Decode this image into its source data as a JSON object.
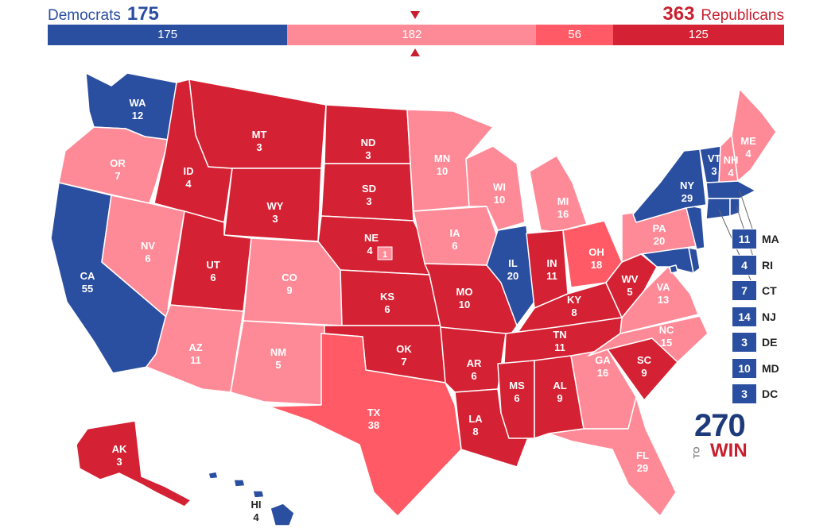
{
  "header": {
    "dem_label": "Democrats",
    "dem_total": "175",
    "rep_total": "363",
    "rep_label": "Republicans"
  },
  "bar": [
    {
      "value": 175,
      "label": "175",
      "color": "#2a4ea0"
    },
    {
      "value": 182,
      "label": "182",
      "color": "#ff8a97"
    },
    {
      "value": 56,
      "label": "56",
      "color": "#ff5a65"
    },
    {
      "value": 125,
      "label": "125",
      "color": "#d42234"
    }
  ],
  "colors": {
    "safe_dem": "#2a4ea0",
    "lean_rep": "#ff8a97",
    "likely_rep": "#ff5a65",
    "safe_rep": "#d42234"
  },
  "states": [
    {
      "abbr": "WA",
      "ev": "12",
      "rating": "safe_dem"
    },
    {
      "abbr": "OR",
      "ev": "7",
      "rating": "lean_rep"
    },
    {
      "abbr": "CA",
      "ev": "55",
      "rating": "safe_dem"
    },
    {
      "abbr": "ID",
      "ev": "4",
      "rating": "safe_rep"
    },
    {
      "abbr": "NV",
      "ev": "6",
      "rating": "lean_rep"
    },
    {
      "abbr": "MT",
      "ev": "3",
      "rating": "safe_rep"
    },
    {
      "abbr": "WY",
      "ev": "3",
      "rating": "safe_rep"
    },
    {
      "abbr": "UT",
      "ev": "6",
      "rating": "safe_rep"
    },
    {
      "abbr": "CO",
      "ev": "9",
      "rating": "lean_rep"
    },
    {
      "abbr": "AZ",
      "ev": "11",
      "rating": "lean_rep"
    },
    {
      "abbr": "NM",
      "ev": "5",
      "rating": "lean_rep"
    },
    {
      "abbr": "ND",
      "ev": "3",
      "rating": "safe_rep"
    },
    {
      "abbr": "SD",
      "ev": "3",
      "rating": "safe_rep"
    },
    {
      "abbr": "NE",
      "ev": "4",
      "rating": "safe_rep"
    },
    {
      "abbr": "KS",
      "ev": "6",
      "rating": "safe_rep"
    },
    {
      "abbr": "OK",
      "ev": "7",
      "rating": "safe_rep"
    },
    {
      "abbr": "TX",
      "ev": "38",
      "rating": "likely_rep"
    },
    {
      "abbr": "MN",
      "ev": "10",
      "rating": "lean_rep"
    },
    {
      "abbr": "IA",
      "ev": "6",
      "rating": "lean_rep"
    },
    {
      "abbr": "MO",
      "ev": "10",
      "rating": "safe_rep"
    },
    {
      "abbr": "AR",
      "ev": "6",
      "rating": "safe_rep"
    },
    {
      "abbr": "LA",
      "ev": "8",
      "rating": "safe_rep"
    },
    {
      "abbr": "WI",
      "ev": "10",
      "rating": "lean_rep"
    },
    {
      "abbr": "IL",
      "ev": "20",
      "rating": "safe_dem"
    },
    {
      "abbr": "MI",
      "ev": "16",
      "rating": "lean_rep"
    },
    {
      "abbr": "IN",
      "ev": "11",
      "rating": "safe_rep"
    },
    {
      "abbr": "OH",
      "ev": "18",
      "rating": "likely_rep"
    },
    {
      "abbr": "KY",
      "ev": "8",
      "rating": "safe_rep"
    },
    {
      "abbr": "TN",
      "ev": "11",
      "rating": "safe_rep"
    },
    {
      "abbr": "MS",
      "ev": "6",
      "rating": "safe_rep"
    },
    {
      "abbr": "AL",
      "ev": "9",
      "rating": "safe_rep"
    },
    {
      "abbr": "GA",
      "ev": "16",
      "rating": "lean_rep"
    },
    {
      "abbr": "FL",
      "ev": "29",
      "rating": "lean_rep"
    },
    {
      "abbr": "SC",
      "ev": "9",
      "rating": "safe_rep"
    },
    {
      "abbr": "NC",
      "ev": "15",
      "rating": "lean_rep"
    },
    {
      "abbr": "VA",
      "ev": "13",
      "rating": "lean_rep"
    },
    {
      "abbr": "WV",
      "ev": "5",
      "rating": "safe_rep"
    },
    {
      "abbr": "PA",
      "ev": "20",
      "rating": "lean_rep"
    },
    {
      "abbr": "NY",
      "ev": "29",
      "rating": "safe_dem"
    },
    {
      "abbr": "VT",
      "ev": "3",
      "rating": "safe_dem"
    },
    {
      "abbr": "NH",
      "ev": "4",
      "rating": "lean_rep"
    },
    {
      "abbr": "ME",
      "ev": "4",
      "rating": "lean_rep"
    },
    {
      "abbr": "AK",
      "ev": "3",
      "rating": "safe_rep"
    },
    {
      "abbr": "HI",
      "ev": "4",
      "rating": "safe_dem"
    }
  ],
  "ne_district": {
    "ev": "1",
    "rating": "lean_rep"
  },
  "northeast_list": [
    {
      "ev": "11",
      "abbr": "MA",
      "rating": "safe_dem"
    },
    {
      "ev": "4",
      "abbr": "RI",
      "rating": "safe_dem"
    },
    {
      "ev": "7",
      "abbr": "CT",
      "rating": "safe_dem"
    },
    {
      "ev": "14",
      "abbr": "NJ",
      "rating": "safe_dem"
    },
    {
      "ev": "3",
      "abbr": "DE",
      "rating": "safe_dem"
    },
    {
      "ev": "10",
      "abbr": "MD",
      "rating": "safe_dem"
    },
    {
      "ev": "3",
      "abbr": "DC",
      "rating": "safe_dem"
    }
  ],
  "logo": {
    "number": "270",
    "small": "TO",
    "word": "WIN"
  }
}
